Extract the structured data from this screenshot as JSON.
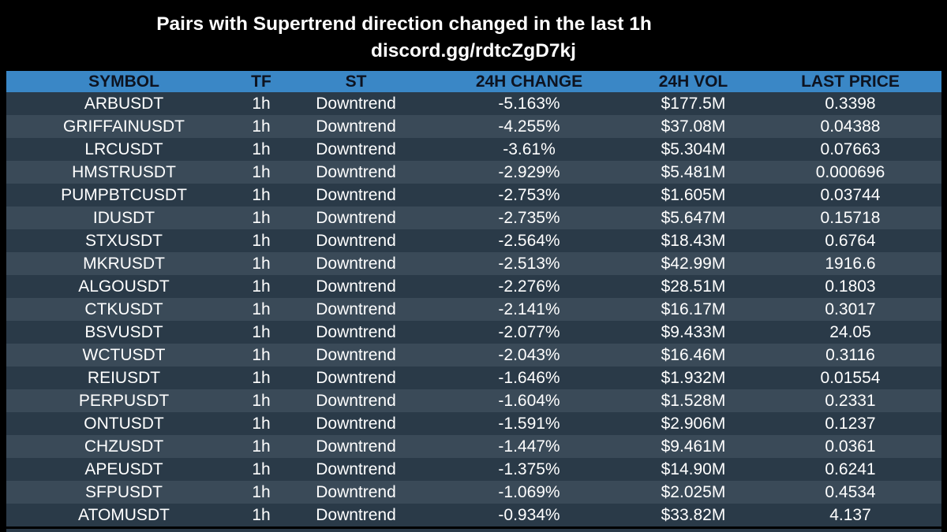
{
  "header": {
    "title": "Pairs with Supertrend direction changed in the last 1h",
    "subtitle": "discord.gg/rdtcZgD7kj"
  },
  "table": {
    "columns": [
      "SYMBOL",
      "TF",
      "ST",
      "24H CHANGE",
      "24H VOL",
      "LAST PRICE"
    ],
    "rows": [
      {
        "symbol": "ARBUSDT",
        "tf": "1h",
        "st": "Downtrend",
        "change": "-5.163%",
        "vol": "$177.5M",
        "price": "0.3398"
      },
      {
        "symbol": "GRIFFAINUSDT",
        "tf": "1h",
        "st": "Downtrend",
        "change": "-4.255%",
        "vol": "$37.08M",
        "price": "0.04388"
      },
      {
        "symbol": "LRCUSDT",
        "tf": "1h",
        "st": "Downtrend",
        "change": "-3.61%",
        "vol": "$5.304M",
        "price": "0.07663"
      },
      {
        "symbol": "HMSTRUSDT",
        "tf": "1h",
        "st": "Downtrend",
        "change": "-2.929%",
        "vol": "$5.481M",
        "price": "0.000696"
      },
      {
        "symbol": "PUMPBTCUSDT",
        "tf": "1h",
        "st": "Downtrend",
        "change": "-2.753%",
        "vol": "$1.605M",
        "price": "0.03744"
      },
      {
        "symbol": "IDUSDT",
        "tf": "1h",
        "st": "Downtrend",
        "change": "-2.735%",
        "vol": "$5.647M",
        "price": "0.15718"
      },
      {
        "symbol": "STXUSDT",
        "tf": "1h",
        "st": "Downtrend",
        "change": "-2.564%",
        "vol": "$18.43M",
        "price": "0.6764"
      },
      {
        "symbol": "MKRUSDT",
        "tf": "1h",
        "st": "Downtrend",
        "change": "-2.513%",
        "vol": "$42.99M",
        "price": "1916.6"
      },
      {
        "symbol": "ALGOUSDT",
        "tf": "1h",
        "st": "Downtrend",
        "change": "-2.276%",
        "vol": "$28.51M",
        "price": "0.1803"
      },
      {
        "symbol": "CTKUSDT",
        "tf": "1h",
        "st": "Downtrend",
        "change": "-2.141%",
        "vol": "$16.17M",
        "price": "0.3017"
      },
      {
        "symbol": "BSVUSDT",
        "tf": "1h",
        "st": "Downtrend",
        "change": "-2.077%",
        "vol": "$9.433M",
        "price": "24.05"
      },
      {
        "symbol": "WCTUSDT",
        "tf": "1h",
        "st": "Downtrend",
        "change": "-2.043%",
        "vol": "$16.46M",
        "price": "0.3116"
      },
      {
        "symbol": "REIUSDT",
        "tf": "1h",
        "st": "Downtrend",
        "change": "-1.646%",
        "vol": "$1.932M",
        "price": "0.01554"
      },
      {
        "symbol": "PERPUSDT",
        "tf": "1h",
        "st": "Downtrend",
        "change": "-1.604%",
        "vol": "$1.528M",
        "price": "0.2331"
      },
      {
        "symbol": "ONTUSDT",
        "tf": "1h",
        "st": "Downtrend",
        "change": "-1.591%",
        "vol": "$2.906M",
        "price": "0.1237"
      },
      {
        "symbol": "CHZUSDT",
        "tf": "1h",
        "st": "Downtrend",
        "change": "-1.447%",
        "vol": "$9.461M",
        "price": "0.0361"
      },
      {
        "symbol": "APEUSDT",
        "tf": "1h",
        "st": "Downtrend",
        "change": "-1.375%",
        "vol": "$14.90M",
        "price": "0.6241"
      },
      {
        "symbol": "SFPUSDT",
        "tf": "1h",
        "st": "Downtrend",
        "change": "-1.069%",
        "vol": "$2.025M",
        "price": "0.4534"
      },
      {
        "symbol": "ATOMUSDT",
        "tf": "1h",
        "st": "Downtrend",
        "change": "-0.934%",
        "vol": "$33.82M",
        "price": "4.137"
      }
    ]
  },
  "colors": {
    "background": "#000000",
    "header_row": "#3a87c6",
    "row_odd": "#2a3a48",
    "row_even": "#3a4a58"
  }
}
